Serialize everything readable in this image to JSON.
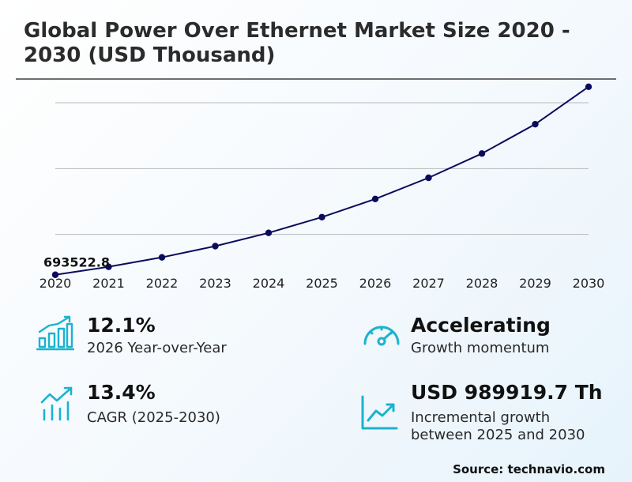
{
  "title": "Global Power Over Ethernet Market Size 2020 - 2030 (USD Thousand)",
  "chart_data": {
    "type": "line",
    "title": "Global Power Over Ethernet Market Size 2020 - 2030 (USD Thousand)",
    "x": [
      "2020",
      "2021",
      "2022",
      "2023",
      "2024",
      "2025",
      "2026",
      "2027",
      "2028",
      "2029",
      "2030"
    ],
    "series": [
      {
        "values": [
          693522.8,
          754000,
          826000,
          911000,
          1012000,
          1131000,
          1269000,
          1430000,
          1614000,
          1837000,
          2121000
        ]
      }
    ],
    "data_labels": [
      {
        "x": "2020",
        "text": "693522.8"
      }
    ],
    "ylim": [
      500000,
      2300000
    ],
    "y_gridlines": [
      1000000,
      1500000,
      2000000
    ],
    "grid": true,
    "line_color": "#0b0b5c"
  },
  "stats": {
    "yoy": {
      "value": "12.1%",
      "label": "2026 Year-over-Year",
      "icon": "bar-chart-growth-icon"
    },
    "cagr": {
      "value": "13.4%",
      "label": "CAGR (2025-2030)",
      "icon": "trend-chart-icon"
    },
    "momentum": {
      "value": "Accelerating",
      "label": "Growth momentum",
      "icon": "speedometer-icon"
    },
    "incremental": {
      "value": "USD 989919.7 Th",
      "label_line1": "Incremental growth",
      "label_line2": "between 2025 and 2030",
      "icon": "line-chart-up-icon"
    }
  },
  "icon_color": "#1ab3cf",
  "source": "Source: technavio.com"
}
